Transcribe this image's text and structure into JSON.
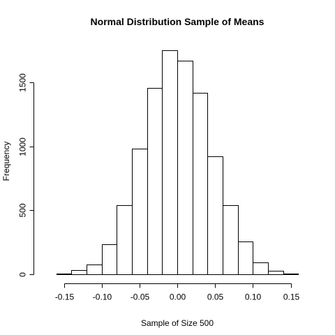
{
  "chart_data": {
    "type": "bar",
    "title": "Normal Distribution Sample of Means",
    "xlabel": "Sample of Size 500",
    "ylabel": "Frequency",
    "bin_width": 0.02,
    "bins": [
      {
        "start": -0.16,
        "end": -0.14,
        "count": 8
      },
      {
        "start": -0.14,
        "end": -0.12,
        "count": 35
      },
      {
        "start": -0.12,
        "end": -0.1,
        "count": 78
      },
      {
        "start": -0.1,
        "end": -0.08,
        "count": 235
      },
      {
        "start": -0.08,
        "end": -0.06,
        "count": 540
      },
      {
        "start": -0.06,
        "end": -0.04,
        "count": 980
      },
      {
        "start": -0.04,
        "end": -0.02,
        "count": 1455
      },
      {
        "start": -0.02,
        "end": 0.0,
        "count": 1750
      },
      {
        "start": 0.0,
        "end": 0.02,
        "count": 1670
      },
      {
        "start": 0.02,
        "end": 0.04,
        "count": 1415
      },
      {
        "start": 0.04,
        "end": 0.06,
        "count": 920
      },
      {
        "start": 0.06,
        "end": 0.08,
        "count": 540
      },
      {
        "start": 0.08,
        "end": 0.1,
        "count": 258
      },
      {
        "start": 0.1,
        "end": 0.12,
        "count": 95
      },
      {
        "start": 0.12,
        "end": 0.14,
        "count": 25
      },
      {
        "start": 0.14,
        "end": 0.16,
        "count": 3
      }
    ],
    "xlim": [
      -0.18,
      0.18
    ],
    "ylim": [
      0,
      1750
    ],
    "x_ticks": [
      -0.15,
      -0.1,
      -0.05,
      0.0,
      0.05,
      0.1,
      0.15
    ],
    "x_tick_labels": [
      "-0.15",
      "-0.10",
      "-0.05",
      "0.00",
      "0.05",
      "0.10",
      "0.15"
    ],
    "y_ticks": [
      0,
      500,
      1000,
      1500
    ],
    "y_tick_labels": [
      "0",
      "500",
      "1000",
      "1500"
    ],
    "grid": false,
    "legend": "none",
    "colors": {
      "bar_fill": "#ffffff",
      "bar_stroke": "#000000"
    }
  }
}
